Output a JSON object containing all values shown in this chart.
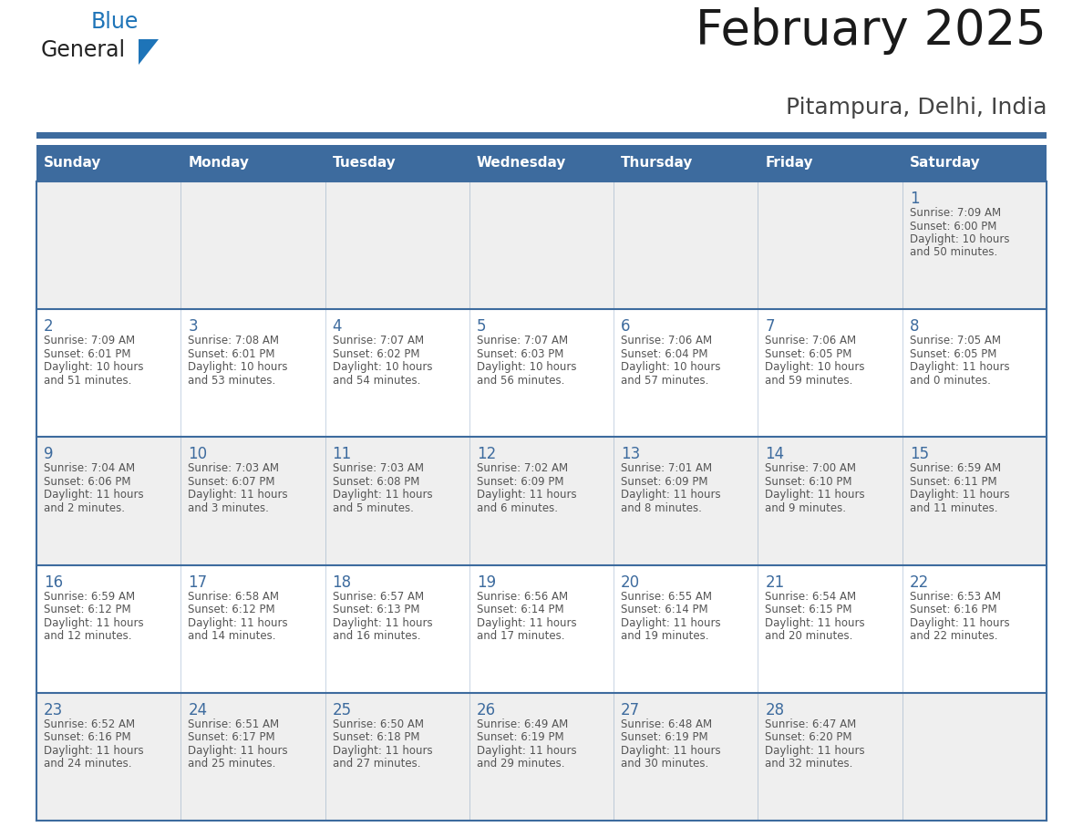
{
  "title": "February 2025",
  "subtitle": "Pitampura, Delhi, India",
  "days_of_week": [
    "Sunday",
    "Monday",
    "Tuesday",
    "Wednesday",
    "Thursday",
    "Friday",
    "Saturday"
  ],
  "header_bg": "#3d6b9e",
  "header_text": "#ffffff",
  "cell_bg_light": "#efefef",
  "cell_bg_white": "#ffffff",
  "border_color": "#3d6b9e",
  "day_number_color": "#3d6b9e",
  "text_color": "#555555",
  "logo_general_color": "#222222",
  "logo_blue_color": "#1e74b8",
  "title_color": "#1a1a1a",
  "subtitle_color": "#444444",
  "calendar": [
    [
      null,
      null,
      null,
      null,
      null,
      null,
      {
        "day": 1,
        "sunrise": "7:09 AM",
        "sunset": "6:00 PM",
        "daylight": "10 hours and 50 minutes."
      }
    ],
    [
      {
        "day": 2,
        "sunrise": "7:09 AM",
        "sunset": "6:01 PM",
        "daylight": "10 hours and 51 minutes."
      },
      {
        "day": 3,
        "sunrise": "7:08 AM",
        "sunset": "6:01 PM",
        "daylight": "10 hours and 53 minutes."
      },
      {
        "day": 4,
        "sunrise": "7:07 AM",
        "sunset": "6:02 PM",
        "daylight": "10 hours and 54 minutes."
      },
      {
        "day": 5,
        "sunrise": "7:07 AM",
        "sunset": "6:03 PM",
        "daylight": "10 hours and 56 minutes."
      },
      {
        "day": 6,
        "sunrise": "7:06 AM",
        "sunset": "6:04 PM",
        "daylight": "10 hours and 57 minutes."
      },
      {
        "day": 7,
        "sunrise": "7:06 AM",
        "sunset": "6:05 PM",
        "daylight": "10 hours and 59 minutes."
      },
      {
        "day": 8,
        "sunrise": "7:05 AM",
        "sunset": "6:05 PM",
        "daylight": "11 hours and 0 minutes."
      }
    ],
    [
      {
        "day": 9,
        "sunrise": "7:04 AM",
        "sunset": "6:06 PM",
        "daylight": "11 hours and 2 minutes."
      },
      {
        "day": 10,
        "sunrise": "7:03 AM",
        "sunset": "6:07 PM",
        "daylight": "11 hours and 3 minutes."
      },
      {
        "day": 11,
        "sunrise": "7:03 AM",
        "sunset": "6:08 PM",
        "daylight": "11 hours and 5 minutes."
      },
      {
        "day": 12,
        "sunrise": "7:02 AM",
        "sunset": "6:09 PM",
        "daylight": "11 hours and 6 minutes."
      },
      {
        "day": 13,
        "sunrise": "7:01 AM",
        "sunset": "6:09 PM",
        "daylight": "11 hours and 8 minutes."
      },
      {
        "day": 14,
        "sunrise": "7:00 AM",
        "sunset": "6:10 PM",
        "daylight": "11 hours and 9 minutes."
      },
      {
        "day": 15,
        "sunrise": "6:59 AM",
        "sunset": "6:11 PM",
        "daylight": "11 hours and 11 minutes."
      }
    ],
    [
      {
        "day": 16,
        "sunrise": "6:59 AM",
        "sunset": "6:12 PM",
        "daylight": "11 hours and 12 minutes."
      },
      {
        "day": 17,
        "sunrise": "6:58 AM",
        "sunset": "6:12 PM",
        "daylight": "11 hours and 14 minutes."
      },
      {
        "day": 18,
        "sunrise": "6:57 AM",
        "sunset": "6:13 PM",
        "daylight": "11 hours and 16 minutes."
      },
      {
        "day": 19,
        "sunrise": "6:56 AM",
        "sunset": "6:14 PM",
        "daylight": "11 hours and 17 minutes."
      },
      {
        "day": 20,
        "sunrise": "6:55 AM",
        "sunset": "6:14 PM",
        "daylight": "11 hours and 19 minutes."
      },
      {
        "day": 21,
        "sunrise": "6:54 AM",
        "sunset": "6:15 PM",
        "daylight": "11 hours and 20 minutes."
      },
      {
        "day": 22,
        "sunrise": "6:53 AM",
        "sunset": "6:16 PM",
        "daylight": "11 hours and 22 minutes."
      }
    ],
    [
      {
        "day": 23,
        "sunrise": "6:52 AM",
        "sunset": "6:16 PM",
        "daylight": "11 hours and 24 minutes."
      },
      {
        "day": 24,
        "sunrise": "6:51 AM",
        "sunset": "6:17 PM",
        "daylight": "11 hours and 25 minutes."
      },
      {
        "day": 25,
        "sunrise": "6:50 AM",
        "sunset": "6:18 PM",
        "daylight": "11 hours and 27 minutes."
      },
      {
        "day": 26,
        "sunrise": "6:49 AM",
        "sunset": "6:19 PM",
        "daylight": "11 hours and 29 minutes."
      },
      {
        "day": 27,
        "sunrise": "6:48 AM",
        "sunset": "6:19 PM",
        "daylight": "11 hours and 30 minutes."
      },
      {
        "day": 28,
        "sunrise": "6:47 AM",
        "sunset": "6:20 PM",
        "daylight": "11 hours and 32 minutes."
      },
      null
    ]
  ]
}
